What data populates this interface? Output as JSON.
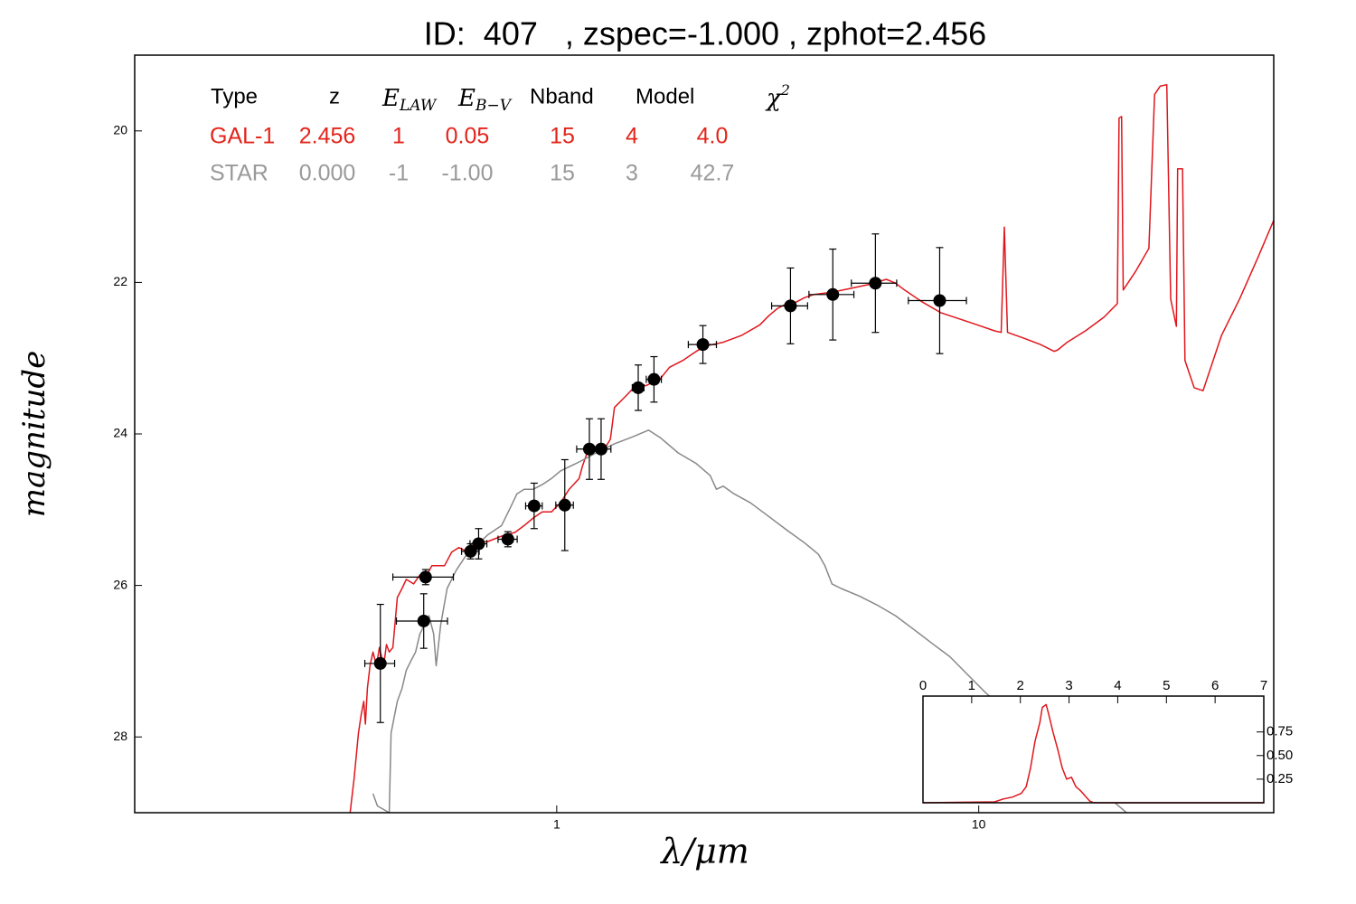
{
  "chart_data": [
    {
      "type": "line",
      "title": "ID:  407   , zspec=-1.000 , zphot=2.456",
      "xlabel": "λ/μm",
      "ylabel": "magnitude",
      "xscale": "log",
      "xlim": [
        0.1,
        50
      ],
      "xticks": [
        1,
        10
      ],
      "xtick_side": "bottom",
      "ylim": [
        29,
        19
      ],
      "yticks": [
        20,
        22,
        24,
        26,
        28
      ],
      "ytick_side": "left",
      "table": {
        "header": [
          "Type",
          "z",
          {
            "base": "E",
            "sub": "LAW"
          },
          {
            "base": "E",
            "sub": "B−V"
          },
          "Nband",
          "Model",
          {
            "base": "χ",
            "sup": "2"
          }
        ],
        "rows": [
          {
            "color": "#e3241b",
            "cells": [
              "GAL-1",
              "2.456",
              "1",
              "0.05",
              "15",
              "4",
              "4.0"
            ]
          },
          {
            "color": "#9a9a9a",
            "cells": [
              "STAR",
              "0.000",
              "-1",
              "-1.00",
              "15",
              "3",
              "42.7"
            ]
          }
        ]
      },
      "series": [
        {
          "color": "#e0161c",
          "x": [
            0.324,
            0.331,
            0.339,
            0.344,
            0.349,
            0.352,
            0.356,
            0.361,
            0.367,
            0.374,
            0.38,
            0.389,
            0.395,
            0.401,
            0.409,
            0.419,
            0.43,
            0.44,
            0.458,
            0.474,
            0.486,
            0.506,
            0.524,
            0.542,
            0.564,
            0.586,
            0.607,
            0.638,
            0.687,
            0.74,
            0.797,
            0.837,
            0.88,
            0.924,
            0.971,
            1.02,
            1.07,
            1.13,
            1.15,
            1.18,
            1.24,
            1.31,
            1.34,
            1.37,
            1.44,
            1.51,
            1.63,
            1.76,
            1.85,
            1.99,
            2.14,
            2.25,
            2.48,
            2.74,
            3.03,
            3.18,
            3.34,
            3.51,
            3.69,
            3.87,
            4.07,
            4.49,
            4.96,
            5.47,
            6.04,
            6.35,
            6.67,
            7.36,
            8.13,
            8.97,
            9.91,
            10.9,
            11.3,
            11.5,
            11.7,
            12.7,
            14.0,
            15.1,
            15.4,
            16.2,
            17.9,
            19.8,
            21.3,
            21.5,
            21.8,
            22.0,
            23.5,
            25.3,
            26.1,
            26.9,
            27.9,
            28.5,
            29.4,
            29.6,
            30.4,
            30.8,
            32.4,
            34.0,
            37.6,
            41.5,
            45.8,
            50
          ],
          "values": [
            29.0,
            28.55,
            27.95,
            27.71,
            27.53,
            27.83,
            27.36,
            27.06,
            26.88,
            27.06,
            26.82,
            27.06,
            26.78,
            26.88,
            26.82,
            26.16,
            26.04,
            25.92,
            25.98,
            25.86,
            25.92,
            25.74,
            25.74,
            25.74,
            25.56,
            25.5,
            25.54,
            25.42,
            25.42,
            25.35,
            25.3,
            25.21,
            25.11,
            25.03,
            25.03,
            24.91,
            24.73,
            24.59,
            24.43,
            24.25,
            24.23,
            24.16,
            24.07,
            23.65,
            23.53,
            23.41,
            23.36,
            23.27,
            23.12,
            23.03,
            22.91,
            22.84,
            22.79,
            22.7,
            22.56,
            22.44,
            22.34,
            22.28,
            22.26,
            22.2,
            22.16,
            22.13,
            22.08,
            22.03,
            21.96,
            22.01,
            22.1,
            22.26,
            22.4,
            22.48,
            22.56,
            22.64,
            22.66,
            21.27,
            22.66,
            22.73,
            22.82,
            22.91,
            22.89,
            22.79,
            22.64,
            22.46,
            22.28,
            19.83,
            19.81,
            22.1,
            21.86,
            21.55,
            19.52,
            19.41,
            19.39,
            22.22,
            22.58,
            20.5,
            20.5,
            23.03,
            23.39,
            23.43,
            22.7,
            22.22,
            21.68,
            21.18
          ]
        },
        {
          "color": "#888888",
          "x": [
            0.367,
            0.376,
            0.401,
            0.405,
            0.419,
            0.43,
            0.44,
            0.451,
            0.463,
            0.474,
            0.486,
            0.498,
            0.511,
            0.518,
            0.531,
            0.55,
            0.578,
            0.607,
            0.638,
            0.687,
            0.74,
            0.777,
            0.805,
            0.837,
            0.88,
            0.924,
            0.971,
            1.02,
            1.13,
            1.24,
            1.37,
            1.51,
            1.65,
            1.76,
            1.94,
            2.14,
            2.31,
            2.39,
            2.48,
            2.63,
            2.88,
            3.18,
            3.51,
            3.87,
            4.17,
            4.32,
            4.49,
            4.72,
            5.21,
            5.75,
            6.35,
            7.01,
            7.73,
            8.54,
            9.42,
            10.4,
            22.4
          ],
          "values": [
            28.75,
            28.91,
            29.0,
            27.95,
            27.53,
            27.36,
            27.12,
            27.0,
            26.88,
            26.64,
            26.52,
            26.4,
            26.64,
            27.06,
            26.52,
            26.04,
            25.8,
            25.62,
            25.5,
            25.33,
            25.21,
            24.97,
            24.79,
            24.73,
            24.73,
            24.67,
            24.59,
            24.49,
            24.37,
            24.25,
            24.13,
            24.04,
            23.95,
            24.05,
            24.25,
            24.39,
            24.55,
            24.73,
            24.69,
            24.79,
            24.91,
            25.09,
            25.27,
            25.44,
            25.59,
            25.74,
            25.98,
            26.04,
            26.14,
            26.26,
            26.4,
            26.58,
            26.76,
            26.94,
            27.18,
            27.42,
            29.0
          ]
        }
      ],
      "points": {
        "color": "#000000",
        "x": [
          0.382,
          0.484,
          0.489,
          0.625,
          0.653,
          0.766,
          0.884,
          1.045,
          1.195,
          1.274,
          1.56,
          1.7,
          2.22,
          3.58,
          4.51,
          5.69,
          8.08
        ],
        "values": [
          27.03,
          26.47,
          25.89,
          25.55,
          25.45,
          25.39,
          24.95,
          24.94,
          24.2,
          24.2,
          23.39,
          23.28,
          22.82,
          22.31,
          22.16,
          22.01,
          22.24
        ],
        "xerr": [
          0.031,
          0.067,
          0.08,
          0.03,
          0.03,
          0.04,
          0.04,
          0.05,
          0.08,
          0.07,
          0.05,
          0.07,
          0.17,
          0.35,
          0.55,
          0.7,
          1.27
        ],
        "yerr": [
          0.78,
          0.36,
          0.1,
          0.1,
          0.2,
          0.1,
          0.3,
          0.6,
          0.4,
          0.4,
          0.3,
          0.3,
          0.25,
          0.5,
          0.6,
          0.65,
          0.7
        ]
      }
    },
    {
      "type": "line",
      "xlim": [
        0,
        7
      ],
      "xticks": [
        0,
        1,
        2,
        3,
        4,
        5,
        6,
        7
      ],
      "xtick_side": "top",
      "ylim": [
        0,
        1.13
      ],
      "yticks": [
        0.25,
        {
          "value": 0.5,
          "label": "0.50"
        },
        0.75
      ],
      "ytick_side": "right",
      "series": [
        {
          "color": "#e0161c",
          "x": [
            0,
            1.47,
            1.65,
            1.84,
            2.02,
            2.12,
            2.21,
            2.3,
            2.4,
            2.45,
            2.53,
            2.58,
            2.67,
            2.77,
            2.86,
            2.95,
            3.05,
            3.14,
            3.23,
            3.42,
            3.51,
            7
          ],
          "values": [
            0,
            0.01,
            0.04,
            0.06,
            0.1,
            0.17,
            0.37,
            0.65,
            0.85,
            1.01,
            1.04,
            0.94,
            0.75,
            0.56,
            0.37,
            0.25,
            0.27,
            0.17,
            0.13,
            0.02,
            0,
            0
          ]
        }
      ]
    }
  ]
}
